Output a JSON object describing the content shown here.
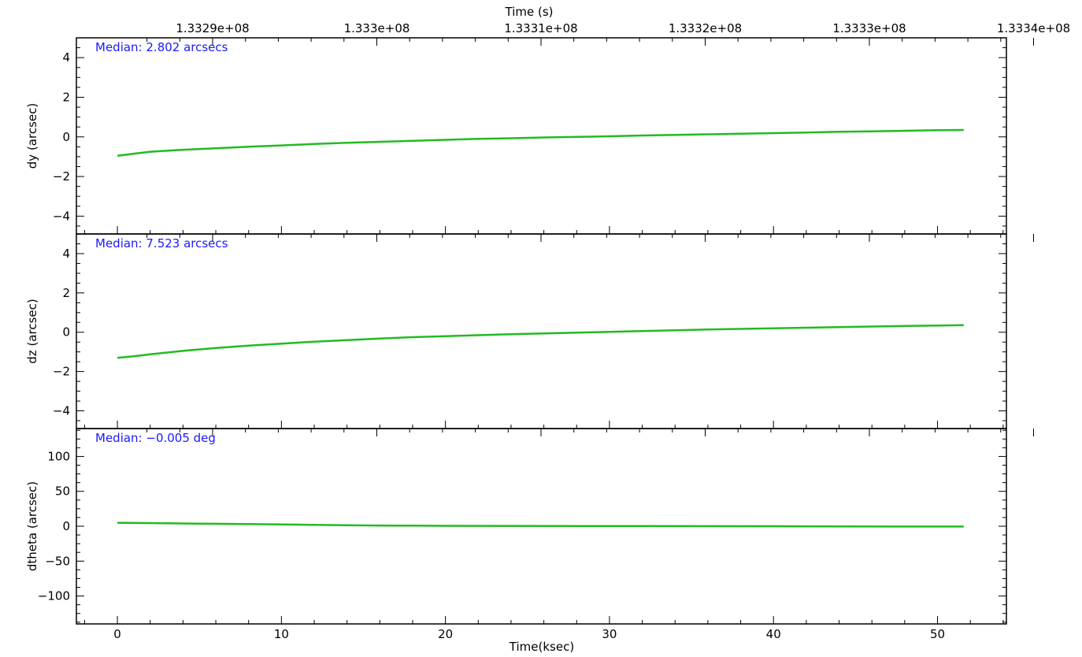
{
  "chart_data": {
    "type": "line",
    "top_axis": {
      "label": "Time (s)",
      "ticks": [
        {
          "value": 133290000,
          "label": "1.3329e+08"
        },
        {
          "value": 133300000,
          "label": "1.333e+08"
        },
        {
          "value": 133310000,
          "label": "1.3331e+08"
        },
        {
          "value": 133320000,
          "label": "1.3332e+08"
        },
        {
          "value": 133330000,
          "label": "1.3333e+08"
        },
        {
          "value": 133340000,
          "label": "1.3334e+08"
        }
      ]
    },
    "bottom_axis": {
      "label": "Time(ksec)",
      "range": [
        -2.5,
        54.2
      ],
      "ticks": [
        0,
        10,
        20,
        30,
        40,
        50
      ],
      "tick_labels": [
        "0",
        "10",
        "20",
        "30",
        "40",
        "50"
      ]
    },
    "line_color": "#22bb22",
    "annotation_color": "#1a1aff",
    "panels": [
      {
        "ylabel": "dy (arcsec)",
        "ylim": [
          -4.9,
          5.0
        ],
        "yticks": [
          -4,
          -2,
          0,
          2,
          4
        ],
        "ytick_labels": [
          "−4",
          "−2",
          "0",
          "2",
          "4"
        ],
        "annotation": "Median: 2.802 arcsecs",
        "series": [
          {
            "x": [
              0,
              1,
              2,
              4,
              6,
              8,
              10,
              12,
              14,
              16,
              18,
              20,
              22,
              24,
              26,
              28,
              30,
              32,
              34,
              36,
              38,
              40,
              42,
              44,
              46,
              48,
              50,
              51.6
            ],
            "y": [
              -0.95,
              -0.85,
              -0.75,
              -0.65,
              -0.58,
              -0.5,
              -0.43,
              -0.36,
              -0.3,
              -0.25,
              -0.2,
              -0.15,
              -0.1,
              -0.07,
              -0.03,
              0.0,
              0.03,
              0.07,
              0.1,
              0.13,
              0.16,
              0.19,
              0.22,
              0.26,
              0.28,
              0.31,
              0.34,
              0.35
            ]
          }
        ]
      },
      {
        "ylabel": "dz (arcsec)",
        "ylim": [
          -4.9,
          5.0
        ],
        "yticks": [
          -4,
          -2,
          0,
          2,
          4
        ],
        "ytick_labels": [
          "−4",
          "−2",
          "0",
          "2",
          "4"
        ],
        "annotation": "Median: 7.523 arcsecs",
        "series": [
          {
            "x": [
              0,
              1,
              2,
              4,
              6,
              8,
              10,
              12,
              14,
              16,
              18,
              20,
              22,
              24,
              26,
              28,
              30,
              32,
              34,
              36,
              38,
              40,
              42,
              44,
              46,
              48,
              50,
              51.6
            ],
            "y": [
              -1.3,
              -1.22,
              -1.12,
              -0.95,
              -0.8,
              -0.68,
              -0.58,
              -0.48,
              -0.4,
              -0.32,
              -0.25,
              -0.2,
              -0.15,
              -0.1,
              -0.06,
              -0.02,
              0.02,
              0.06,
              0.1,
              0.14,
              0.17,
              0.2,
              0.23,
              0.26,
              0.29,
              0.32,
              0.34,
              0.36
            ]
          }
        ]
      },
      {
        "ylabel": "dtheta (arcsec)",
        "ylim": [
          -140,
          140
        ],
        "yticks": [
          -100,
          -50,
          0,
          50,
          100
        ],
        "ytick_labels": [
          "−100",
          "−50",
          "0",
          "50",
          "100"
        ],
        "annotation": "Median: −0.005 deg",
        "series": [
          {
            "x": [
              0,
              2,
              4,
              6,
              8,
              10,
              12,
              14,
              16,
              18,
              20,
              24,
              28,
              32,
              36,
              40,
              44,
              48,
              51.6
            ],
            "y": [
              5,
              4.5,
              4,
              3.5,
              3,
              2.5,
              2,
              1.5,
              1,
              0.8,
              0.6,
              0.4,
              0.3,
              0.2,
              0.1,
              0.0,
              -0.2,
              -0.4,
              -0.5
            ]
          }
        ]
      }
    ]
  }
}
